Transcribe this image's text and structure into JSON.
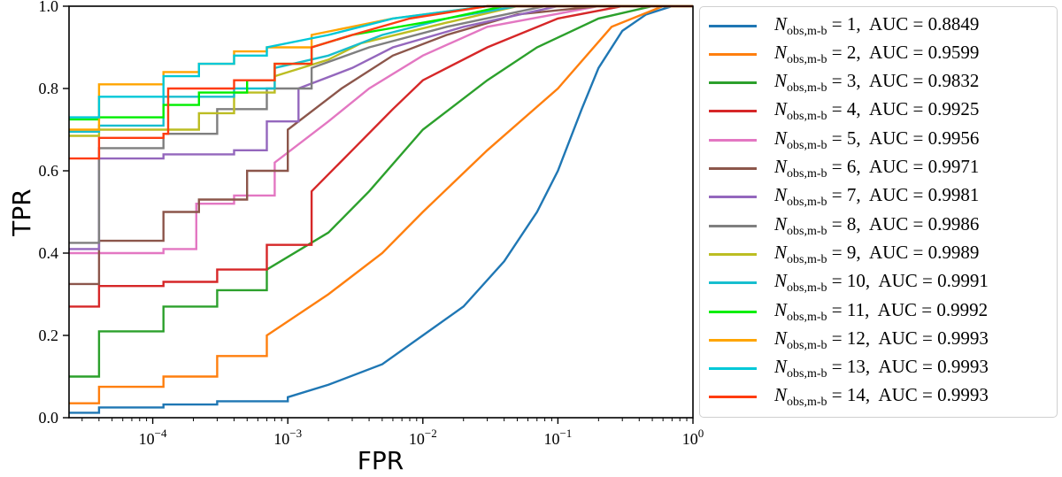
{
  "chart_data": {
    "type": "line",
    "xlabel": "FPR",
    "ylabel": "TPR",
    "xscale": "log",
    "xlim": [
      2.4e-05,
      1
    ],
    "ylim": [
      0,
      1
    ],
    "x_tick_exponents": [
      -4,
      -3,
      -2,
      -1,
      0
    ],
    "y_ticks": [
      "0.0",
      "0.2",
      "0.4",
      "0.6",
      "0.8",
      "1.0"
    ],
    "grid": false,
    "legend_placement": "outside-right",
    "legend_symbol": "N",
    "legend_subscript": "obs,m-b",
    "series": [
      {
        "n": "1",
        "auc": "0.8849",
        "color": "#1f77b4",
        "points": [
          [
            2.4e-05,
            0.012
          ],
          [
            4e-05,
            0.025
          ],
          [
            0.00012,
            0.032
          ],
          [
            0.0003,
            0.04
          ],
          [
            0.001,
            0.05
          ],
          [
            0.002,
            0.08
          ],
          [
            0.005,
            0.13
          ],
          [
            0.01,
            0.2
          ],
          [
            0.02,
            0.27
          ],
          [
            0.04,
            0.38
          ],
          [
            0.07,
            0.5
          ],
          [
            0.1,
            0.6
          ],
          [
            0.15,
            0.75
          ],
          [
            0.2,
            0.85
          ],
          [
            0.3,
            0.94
          ],
          [
            0.45,
            0.98
          ],
          [
            0.7,
            1.0
          ],
          [
            1,
            1.0
          ]
        ]
      },
      {
        "n": "2",
        "auc": "0.9599",
        "color": "#ff7f0e",
        "points": [
          [
            2.4e-05,
            0.035
          ],
          [
            4e-05,
            0.075
          ],
          [
            0.00012,
            0.1
          ],
          [
            0.0003,
            0.15
          ],
          [
            0.0007,
            0.2
          ],
          [
            0.002,
            0.3
          ],
          [
            0.005,
            0.4
          ],
          [
            0.01,
            0.5
          ],
          [
            0.03,
            0.65
          ],
          [
            0.1,
            0.8
          ],
          [
            0.25,
            0.95
          ],
          [
            0.6,
            1.0
          ],
          [
            1,
            1.0
          ]
        ]
      },
      {
        "n": "3",
        "auc": "0.9832",
        "color": "#2ca02c",
        "points": [
          [
            2.4e-05,
            0.1
          ],
          [
            4e-05,
            0.21
          ],
          [
            0.00012,
            0.27
          ],
          [
            0.0003,
            0.31
          ],
          [
            0.0007,
            0.36
          ],
          [
            0.002,
            0.45
          ],
          [
            0.004,
            0.55
          ],
          [
            0.01,
            0.7
          ],
          [
            0.03,
            0.82
          ],
          [
            0.07,
            0.9
          ],
          [
            0.2,
            0.97
          ],
          [
            0.5,
            1.0
          ],
          [
            1,
            1.0
          ]
        ]
      },
      {
        "n": "4",
        "auc": "0.9925",
        "color": "#d62728",
        "points": [
          [
            2.4e-05,
            0.27
          ],
          [
            4e-05,
            0.32
          ],
          [
            0.00012,
            0.33
          ],
          [
            0.0003,
            0.36
          ],
          [
            0.0007,
            0.42
          ],
          [
            0.0015,
            0.55
          ],
          [
            0.003,
            0.65
          ],
          [
            0.006,
            0.75
          ],
          [
            0.01,
            0.82
          ],
          [
            0.03,
            0.9
          ],
          [
            0.1,
            0.97
          ],
          [
            0.3,
            1.0
          ],
          [
            1,
            1.0
          ]
        ]
      },
      {
        "n": "5",
        "auc": "0.9956",
        "color": "#e377c2",
        "points": [
          [
            2.4e-05,
            0.4
          ],
          [
            0.00012,
            0.41
          ],
          [
            0.00021,
            0.52
          ],
          [
            0.0004,
            0.54
          ],
          [
            0.0008,
            0.62
          ],
          [
            0.002,
            0.72
          ],
          [
            0.004,
            0.8
          ],
          [
            0.01,
            0.88
          ],
          [
            0.03,
            0.95
          ],
          [
            0.2,
            1.0
          ],
          [
            1,
            1.0
          ]
        ]
      },
      {
        "n": "6",
        "auc": "0.9971",
        "color": "#8c564b",
        "points": [
          [
            2.4e-05,
            0.325
          ],
          [
            4e-05,
            0.43
          ],
          [
            0.00012,
            0.5
          ],
          [
            0.00022,
            0.53
          ],
          [
            0.0005,
            0.6
          ],
          [
            0.001,
            0.7
          ],
          [
            0.0025,
            0.8
          ],
          [
            0.006,
            0.88
          ],
          [
            0.015,
            0.93
          ],
          [
            0.05,
            0.98
          ],
          [
            0.2,
            1.0
          ],
          [
            1,
            1.0
          ]
        ]
      },
      {
        "n": "7",
        "auc": "0.9981",
        "color": "#9467bd",
        "points": [
          [
            2.4e-05,
            0.41
          ],
          [
            4e-05,
            0.63
          ],
          [
            0.00012,
            0.64
          ],
          [
            0.0004,
            0.65
          ],
          [
            0.0007,
            0.72
          ],
          [
            0.0012,
            0.8
          ],
          [
            0.003,
            0.85
          ],
          [
            0.006,
            0.9
          ],
          [
            0.02,
            0.95
          ],
          [
            0.1,
            1.0
          ],
          [
            1,
            1.0
          ]
        ]
      },
      {
        "n": "8",
        "auc": "0.9986",
        "color": "#7f7f7f",
        "points": [
          [
            2.4e-05,
            0.425
          ],
          [
            4e-05,
            0.655
          ],
          [
            0.00012,
            0.69
          ],
          [
            0.0003,
            0.75
          ],
          [
            0.0007,
            0.8
          ],
          [
            0.0015,
            0.85
          ],
          [
            0.004,
            0.9
          ],
          [
            0.015,
            0.95
          ],
          [
            0.08,
            1.0
          ],
          [
            1,
            1.0
          ]
        ]
      },
      {
        "n": "9",
        "auc": "0.9989",
        "color": "#bcbd22",
        "points": [
          [
            2.4e-05,
            0.685
          ],
          [
            4e-05,
            0.7
          ],
          [
            0.00022,
            0.74
          ],
          [
            0.0004,
            0.79
          ],
          [
            0.0008,
            0.83
          ],
          [
            0.002,
            0.87
          ],
          [
            0.0035,
            0.91
          ],
          [
            0.015,
            0.96
          ],
          [
            0.05,
            1.0
          ],
          [
            1,
            1.0
          ]
        ]
      },
      {
        "n": "10",
        "auc": "0.9991",
        "color": "#17becf",
        "points": [
          [
            2.4e-05,
            0.695
          ],
          [
            4e-05,
            0.71
          ],
          [
            0.00012,
            0.78
          ],
          [
            0.0004,
            0.8
          ],
          [
            0.0008,
            0.85
          ],
          [
            0.002,
            0.88
          ],
          [
            0.005,
            0.93
          ],
          [
            0.015,
            0.97
          ],
          [
            0.05,
            1.0
          ],
          [
            1,
            1.0
          ]
        ]
      },
      {
        "n": "11",
        "auc": "0.9992",
        "color": "#00ee00",
        "points": [
          [
            2.4e-05,
            0.725
          ],
          [
            4e-05,
            0.73
          ],
          [
            0.00012,
            0.76
          ],
          [
            0.00022,
            0.79
          ],
          [
            0.0005,
            0.82
          ],
          [
            0.0008,
            0.86
          ],
          [
            0.0015,
            0.9
          ],
          [
            0.003,
            0.93
          ],
          [
            0.015,
            0.97
          ],
          [
            0.04,
            1.0
          ],
          [
            1,
            1.0
          ]
        ]
      },
      {
        "n": "12",
        "auc": "0.9993",
        "color": "#ffa500",
        "points": [
          [
            2.4e-05,
            0.7
          ],
          [
            4e-05,
            0.81
          ],
          [
            0.00012,
            0.84
          ],
          [
            0.00022,
            0.86
          ],
          [
            0.0004,
            0.89
          ],
          [
            0.0007,
            0.9
          ],
          [
            0.0015,
            0.93
          ],
          [
            0.006,
            0.97
          ],
          [
            0.03,
            1.0
          ],
          [
            1,
            1.0
          ]
        ]
      },
      {
        "n": "13",
        "auc": "0.9993",
        "color": "#00c8d8",
        "points": [
          [
            2.4e-05,
            0.73
          ],
          [
            4e-05,
            0.78
          ],
          [
            0.00012,
            0.83
          ],
          [
            0.00022,
            0.86
          ],
          [
            0.0004,
            0.88
          ],
          [
            0.0007,
            0.9
          ],
          [
            0.002,
            0.93
          ],
          [
            0.006,
            0.97
          ],
          [
            0.03,
            1.0
          ],
          [
            1,
            1.0
          ]
        ]
      },
      {
        "n": "14",
        "auc": "0.9993",
        "color": "#ff3c10",
        "points": [
          [
            2.4e-05,
            0.63
          ],
          [
            4e-05,
            0.68
          ],
          [
            0.00012,
            0.69
          ],
          [
            0.00013,
            0.8
          ],
          [
            0.0004,
            0.82
          ],
          [
            0.0008,
            0.86
          ],
          [
            0.0015,
            0.9
          ],
          [
            0.003,
            0.93
          ],
          [
            0.008,
            0.97
          ],
          [
            0.03,
            1.0
          ],
          [
            1,
            1.0
          ]
        ]
      }
    ]
  }
}
